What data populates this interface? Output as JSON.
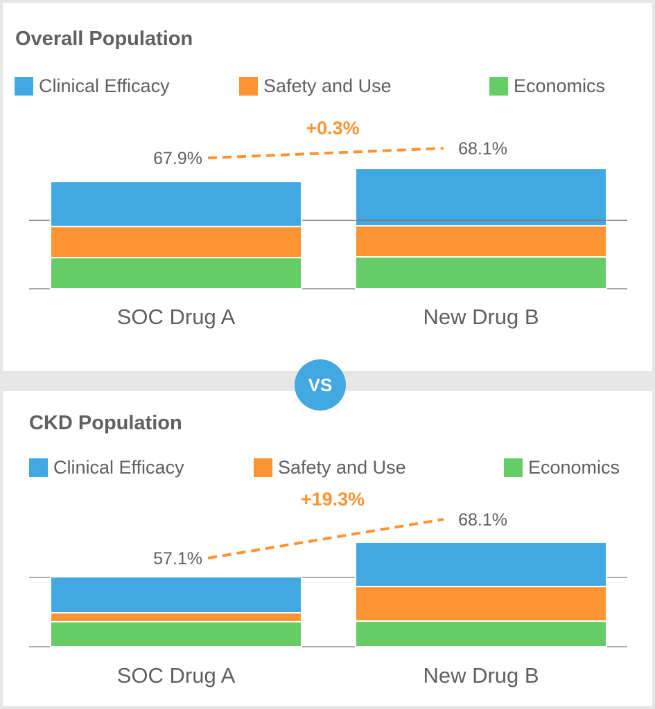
{
  "vs_label": "VS",
  "colors": {
    "clinical_efficacy": "#42a8e2",
    "safety_and_use": "#fb9432",
    "economics": "#66cc66",
    "delta": "#fb9432",
    "axis": "#999999"
  },
  "chart_data": [
    {
      "type": "bar",
      "stacked": true,
      "title": "Overall Population",
      "legend": [
        "Clinical Efficacy",
        "Safety and Use",
        "Economics"
      ],
      "legend_position": "top",
      "categories": [
        "SOC Drug A",
        "New Drug B"
      ],
      "series": [
        {
          "name": "Economics",
          "values": [
            19.7,
            18.0
          ]
        },
        {
          "name": "Safety and Use",
          "values": [
            19.7,
            17.6
          ]
        },
        {
          "name": "Clinical Efficacy",
          "values": [
            28.5,
            32.5
          ]
        }
      ],
      "totals": [
        67.9,
        68.1
      ],
      "total_labels": [
        "67.9%",
        "68.1%"
      ],
      "delta_label": "+0.3%",
      "ylim": [
        66.27,
        68.4
      ],
      "gridline": 67.31,
      "xlabel": "",
      "ylabel": ""
    },
    {
      "type": "bar",
      "stacked": true,
      "title": "CKD Population",
      "legend": [
        "Clinical Efficacy",
        "Safety and Use",
        "Economics"
      ],
      "legend_position": "top",
      "categories": [
        "SOC Drug A",
        "New Drug B"
      ],
      "series": [
        {
          "name": "Economics",
          "values": [
            20.4,
            16.7
          ]
        },
        {
          "name": "Safety and Use",
          "values": [
            7.3,
            22.5
          ]
        },
        {
          "name": "Clinical Efficacy",
          "values": [
            29.4,
            28.9
          ]
        }
      ],
      "totals": [
        57.1,
        68.1
      ],
      "total_labels": [
        "57.1%",
        "68.1%"
      ],
      "delta_label": "+19.3%",
      "ylim": [
        34.88,
        70.0
      ],
      "gridline": 56.88,
      "xlabel": "",
      "ylabel": ""
    }
  ]
}
